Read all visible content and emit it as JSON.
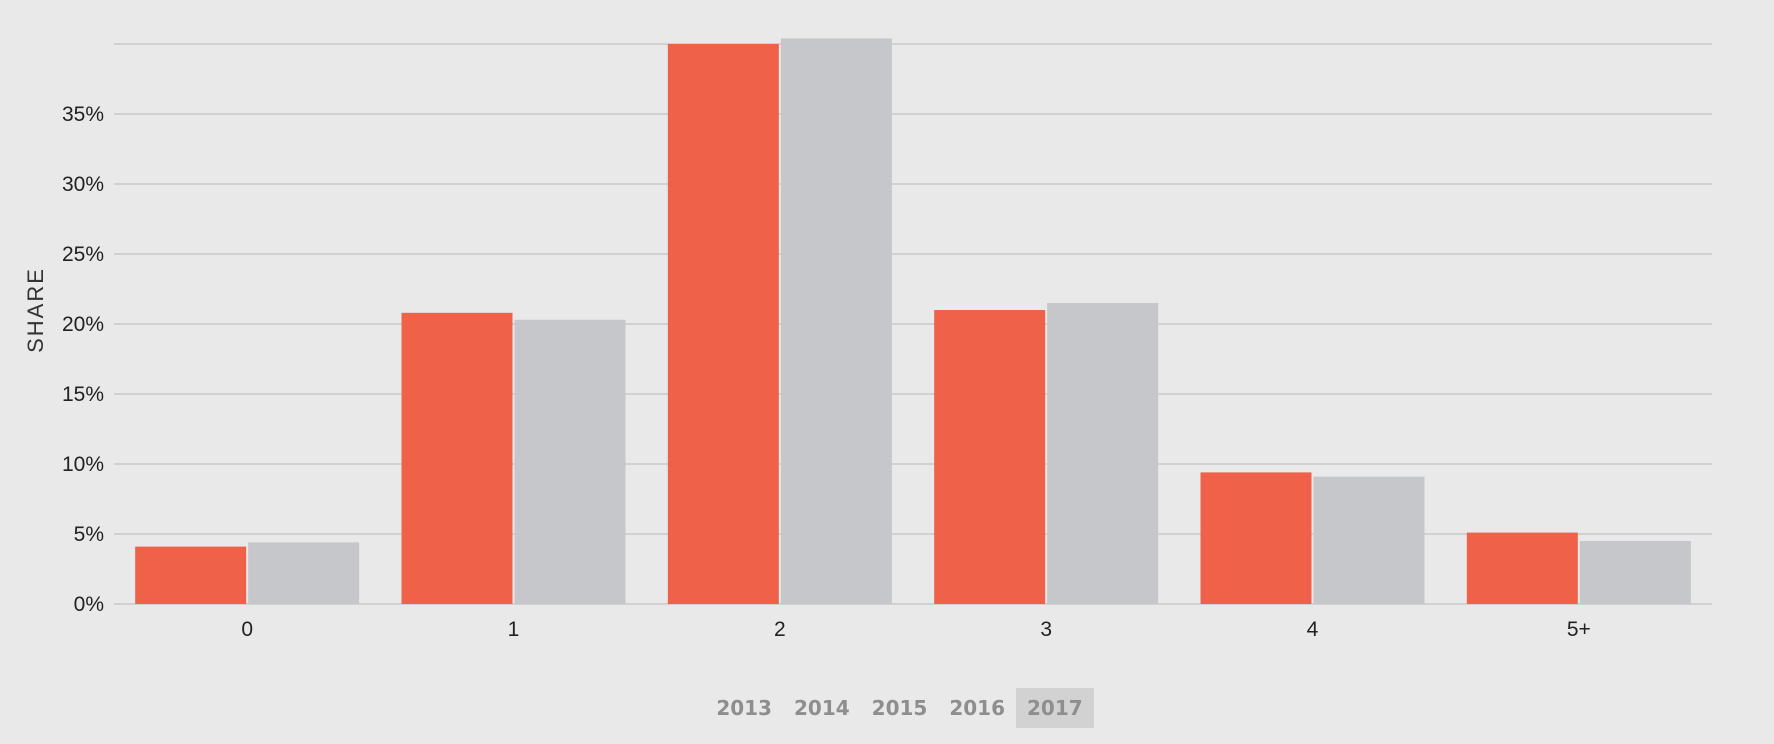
{
  "chart_data": {
    "type": "bar",
    "ylabel": "SHARE",
    "categories": [
      "0",
      "1",
      "2",
      "3",
      "4",
      "5+"
    ],
    "series": [
      {
        "color": "#ef6249",
        "values": [
          4.1,
          20.8,
          40.0,
          21.0,
          9.4,
          5.1
        ]
      },
      {
        "color": "#c6c7ca",
        "values": [
          4.4,
          20.3,
          40.4,
          21.5,
          9.1,
          4.5
        ]
      }
    ],
    "yticks": [
      0,
      5,
      10,
      15,
      20,
      25,
      30,
      35
    ],
    "ytick_labels": [
      "0%",
      "5%",
      "10%",
      "15%",
      "20%",
      "25%",
      "30%",
      "35%"
    ],
    "ylim": [
      0,
      40
    ],
    "grid": true,
    "colors": {
      "background": "#e9e9e9",
      "gridline": "#c9c9c9"
    }
  },
  "years": {
    "options": [
      "2013",
      "2014",
      "2015",
      "2016",
      "2017"
    ],
    "selected": "2017"
  }
}
